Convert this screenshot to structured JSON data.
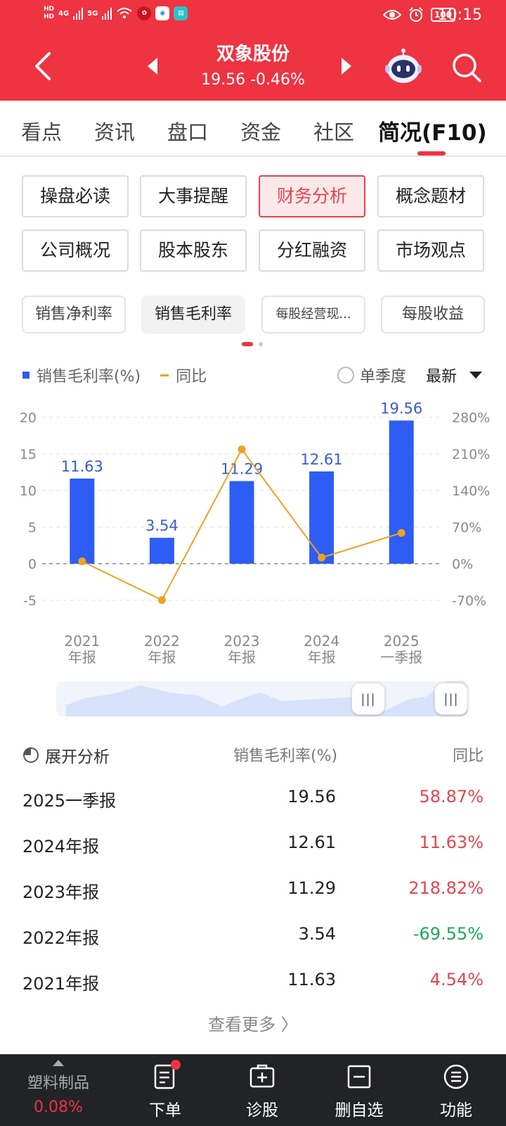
{
  "status_bar": {
    "hd_top": "HD",
    "hd_bottom": "HD",
    "net_1": "4G",
    "net_2": "5G",
    "battery": "100",
    "time": "10:15"
  },
  "header": {
    "stock_name": "双象股份",
    "stock_quote": "19.56 -0.46%",
    "bg_color": "#ee3341"
  },
  "tabs": [
    {
      "label": "看点"
    },
    {
      "label": "资讯"
    },
    {
      "label": "盘口"
    },
    {
      "label": "资金"
    },
    {
      "label": "社区"
    },
    {
      "label": "简况(F10)",
      "active": true
    }
  ],
  "sub_menu": [
    {
      "label": "操盘必读"
    },
    {
      "label": "大事提醒"
    },
    {
      "label": "财务分析",
      "active": true
    },
    {
      "label": "概念题材"
    },
    {
      "label": "公司概况"
    },
    {
      "label": "股本股东"
    },
    {
      "label": "分红融资"
    },
    {
      "label": "市场观点"
    }
  ],
  "metric_chips": [
    {
      "label": "销售净利率"
    },
    {
      "label": "销售毛利率",
      "active": true
    },
    {
      "label": "每股经营现..."
    },
    {
      "label": "每股收益"
    }
  ],
  "chart_controls": {
    "legend_bar": "销售毛利率(%)",
    "legend_line": "同比",
    "single_quarter": "单季度",
    "latest": "最新"
  },
  "chart_data": {
    "type": "bar",
    "categories": [
      [
        "2021",
        "年报"
      ],
      [
        "2022",
        "年报"
      ],
      [
        "2023",
        "年报"
      ],
      [
        "2024",
        "年报"
      ],
      [
        "2025",
        "一季报"
      ]
    ],
    "series": [
      {
        "name": "销售毛利率(%)",
        "type": "bar",
        "values": [
          11.63,
          3.54,
          11.29,
          12.61,
          19.56
        ],
        "color": "#2d5df4"
      },
      {
        "name": "同比",
        "type": "line",
        "axis": "right",
        "values": [
          4.54,
          -69.55,
          218.82,
          11.63,
          58.87
        ],
        "color": "#f0a121"
      }
    ],
    "y_left": {
      "ticks": [
        20,
        15,
        10,
        5,
        0,
        -5
      ],
      "ylim": [
        -5,
        20
      ]
    },
    "y_right": {
      "ticks": [
        "280%",
        "210%",
        "140%",
        "70%",
        "0%",
        "-70%"
      ],
      "ylim": [
        -70,
        280
      ]
    },
    "data_labels": [
      "11.63",
      "3.54",
      "11.29",
      "12.61",
      "19.56"
    ],
    "grid": true,
    "legend": "top-left"
  },
  "table": {
    "expand_label": "展开分析",
    "col_value": "销售毛利率(%)",
    "col_yoy": "同比",
    "rows": [
      {
        "period": "2025一季报",
        "value": "19.56",
        "yoy": "58.87%",
        "dir": "up"
      },
      {
        "period": "2024年报",
        "value": "12.61",
        "yoy": "11.63%",
        "dir": "up"
      },
      {
        "period": "2023年报",
        "value": "11.29",
        "yoy": "218.82%",
        "dir": "up"
      },
      {
        "period": "2022年报",
        "value": "3.54",
        "yoy": "-69.55%",
        "dir": "down"
      },
      {
        "period": "2021年报",
        "value": "11.63",
        "yoy": "4.54%",
        "dir": "up"
      }
    ],
    "view_more": "查看更多 〉",
    "up_color": "#e2454f",
    "down_color": "#1ea65a"
  },
  "bottom_bar": {
    "sector": "塑料制品",
    "sector_change": "0.08%",
    "items": [
      {
        "label": "下单",
        "icon": "order-icon"
      },
      {
        "label": "诊股",
        "icon": "diagnose-icon"
      },
      {
        "label": "删自选",
        "icon": "remove-watchlist-icon"
      },
      {
        "label": "功能",
        "icon": "menu-icon"
      }
    ]
  }
}
